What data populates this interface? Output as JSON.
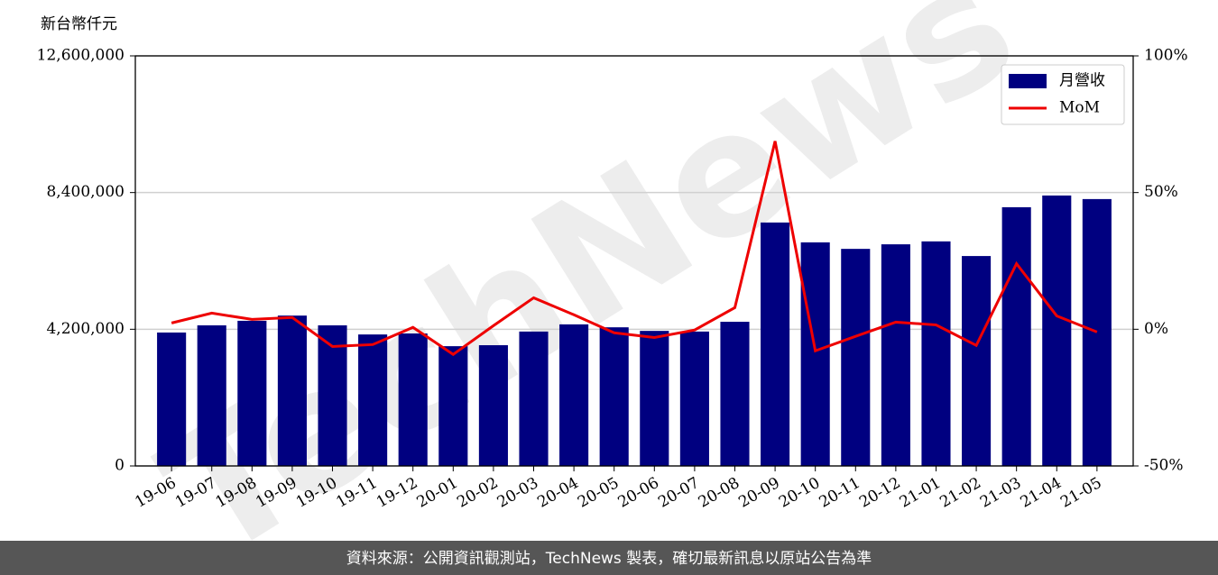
{
  "chart_data": {
    "type": "bar_line",
    "y_label": "新台幣仟元",
    "footer": "資料來源：公開資訊觀測站，TechNews 製表，確切最新訊息以原站公告為準",
    "watermark": "TechNews",
    "categories": [
      "19-06",
      "19-07",
      "19-08",
      "19-09",
      "19-10",
      "19-11",
      "19-12",
      "20-01",
      "20-02",
      "20-03",
      "20-04",
      "20-05",
      "20-06",
      "20-07",
      "20-08",
      "20-09",
      "20-10",
      "20-11",
      "20-12",
      "21-01",
      "21-02",
      "21-03",
      "21-04",
      "21-05"
    ],
    "series": [
      {
        "name": "月營收",
        "type": "bar",
        "color": "#000080",
        "values": [
          4100000,
          4320000,
          4460000,
          4620000,
          4320000,
          4040000,
          4070000,
          3680000,
          3710000,
          4130000,
          4350000,
          4260000,
          4150000,
          4130000,
          4430000,
          7480000,
          6870000,
          6670000,
          6810000,
          6900000,
          6450000,
          7950000,
          8310000,
          8200000
        ]
      },
      {
        "name": "MoM",
        "type": "line",
        "axis": "y2",
        "color": "#ee0000",
        "values": [
          2.3,
          5.9,
          3.6,
          4.3,
          -6.3,
          -5.6,
          0.7,
          -9.2,
          1.3,
          11.5,
          5.3,
          -1.3,
          -3.0,
          -0.3,
          7.9,
          68.8,
          -7.9,
          -2.6,
          2.6,
          1.6,
          -5.9,
          24.0,
          4.9,
          -1.0
        ]
      }
    ],
    "ylim": [
      0,
      12600000
    ],
    "yticks": [
      0,
      {
        "value": 4200000,
        "label": "4,200,000"
      },
      {
        "value": 8400000,
        "label": "8,400,000"
      },
      {
        "value": 12600000,
        "label": "12,600,000"
      }
    ],
    "y2lim": [
      -50,
      100
    ],
    "y2ticks": [
      {
        "value": -50,
        "label": "-50%"
      },
      {
        "value": 0,
        "label": "0%"
      },
      {
        "value": 50,
        "label": "50%"
      },
      {
        "value": 100,
        "label": "100%"
      }
    ],
    "grid": true,
    "legend": "upper right"
  }
}
